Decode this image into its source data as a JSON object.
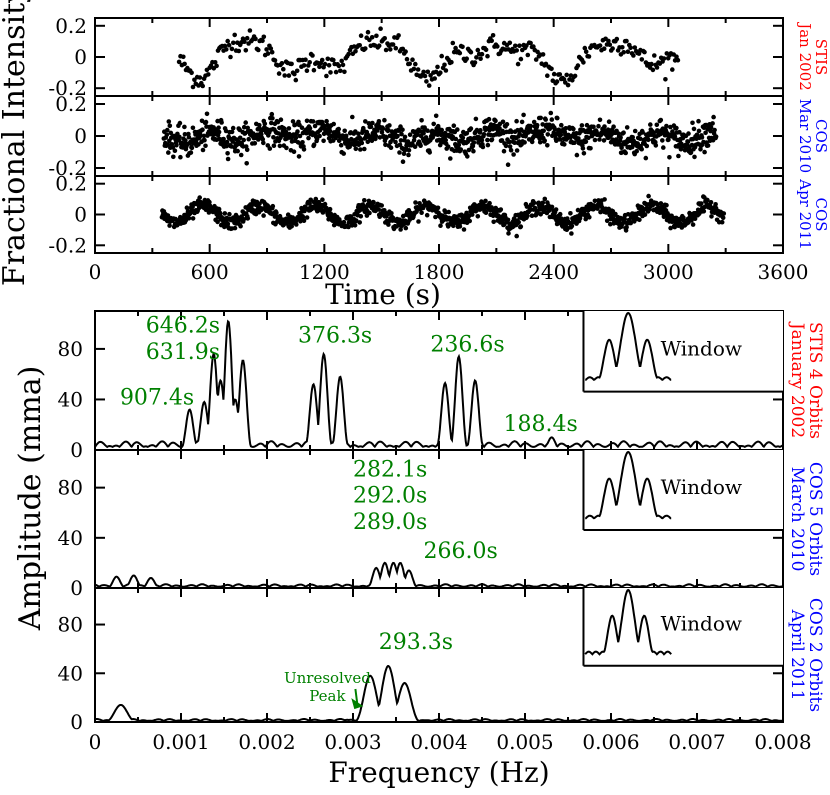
{
  "chart_data": [
    {
      "type": "scatter",
      "xlabel": "Time (s)",
      "ylabel": "Fractional Intensity",
      "xlim": [
        0,
        3600
      ],
      "x_ticks": [
        0,
        600,
        1200,
        1800,
        2400,
        3000,
        3600
      ],
      "panels": [
        {
          "id": "stis-2002",
          "label_lines": [
            "STIS",
            "Jan 2002"
          ],
          "label_color": "#ff0000",
          "ylim": [
            -0.25,
            0.25
          ],
          "y_ticks": [
            -0.2,
            0,
            0.2
          ],
          "x_range": [
            440,
            3050
          ],
          "amplitude": 0.09,
          "noise": 0.035,
          "periods": [
            646.2,
            376.3,
            236.6
          ],
          "n_points": 360
        },
        {
          "id": "cos-2010",
          "label_lines": [
            "COS",
            "Mar 2010"
          ],
          "label_color": "#0000ff",
          "ylim": [
            -0.25,
            0.25
          ],
          "y_ticks": [
            -0.2,
            0,
            0.2
          ],
          "x_range": [
            360,
            3250
          ],
          "amplitude": 0.03,
          "noise": 0.045,
          "periods": [
            292.0,
            1200
          ],
          "n_points": 1100
        },
        {
          "id": "cos-2011",
          "label_lines": [
            "COS",
            "Apr 2011"
          ],
          "label_color": "#0000ff",
          "ylim": [
            -0.25,
            0.25
          ],
          "y_ticks": [
            -0.2,
            0,
            0.2
          ],
          "x_range": [
            350,
            3290
          ],
          "amplitude": 0.055,
          "noise": 0.025,
          "periods": [
            293.3
          ],
          "n_points": 1100
        }
      ]
    },
    {
      "type": "line",
      "xlabel": "Frequency (Hz)",
      "ylabel": "Amplitude (mma)",
      "xlim": [
        0,
        0.008
      ],
      "x_ticks": [
        0,
        0.001,
        0.002,
        0.003,
        0.004,
        0.005,
        0.006,
        0.007,
        0.008
      ],
      "panels": [
        {
          "id": "stis-4-orbits",
          "label_lines": [
            "STIS 4 Orbits",
            "January 2002"
          ],
          "label_color": "#ff0000",
          "ylim": [
            0,
            110
          ],
          "y_ticks": [
            0,
            40,
            80
          ],
          "noise_level": 7,
          "peaks": [
            {
              "f": 0.0011,
              "a": 32
            },
            {
              "f": 0.00127,
              "a": 38
            },
            {
              "f": 0.00138,
              "a": 76
            },
            {
              "f": 0.00146,
              "a": 55
            },
            {
              "f": 0.00155,
              "a": 102
            },
            {
              "f": 0.00163,
              "a": 40
            },
            {
              "f": 0.00172,
              "a": 71
            },
            {
              "f": 0.00254,
              "a": 52
            },
            {
              "f": 0.00266,
              "a": 76
            },
            {
              "f": 0.00285,
              "a": 58
            },
            {
              "f": 0.00407,
              "a": 53
            },
            {
              "f": 0.00423,
              "a": 74
            },
            {
              "f": 0.00442,
              "a": 55
            },
            {
              "f": 0.00531,
              "a": 10
            }
          ],
          "annotations": [
            {
              "text": "646.2s",
              "f": 0.00059,
              "a": 93
            },
            {
              "text": "631.9s",
              "f": 0.00059,
              "a": 72
            },
            {
              "text": "376.3s",
              "f": 0.00236,
              "a": 85
            },
            {
              "text": "236.6s",
              "f": 0.0039,
              "a": 78
            },
            {
              "text": "907.4s",
              "f": 0.00029,
              "a": 36
            },
            {
              "text": "188.4s",
              "f": 0.00475,
              "a": 15
            }
          ],
          "window_label": "Window"
        },
        {
          "id": "cos-5-orbits",
          "label_lines": [
            "COS 5 Orbits",
            "March 2010"
          ],
          "label_color": "#0000ff",
          "ylim": [
            0,
            110
          ],
          "y_ticks": [
            0,
            40,
            80
          ],
          "noise_level": 3,
          "peaks": [
            {
              "f": 0.00025,
              "a": 9
            },
            {
              "f": 0.00045,
              "a": 10
            },
            {
              "f": 0.00065,
              "a": 8
            },
            {
              "f": 0.00327,
              "a": 16
            },
            {
              "f": 0.00337,
              "a": 20
            },
            {
              "f": 0.00347,
              "a": 20
            },
            {
              "f": 0.00355,
              "a": 20
            },
            {
              "f": 0.00365,
              "a": 14
            }
          ],
          "annotations": [
            {
              "text": "282.1s",
              "f": 0.003,
              "a": 89
            },
            {
              "text": "292.0s",
              "f": 0.003,
              "a": 68
            },
            {
              "text": "289.0s",
              "f": 0.003,
              "a": 47
            },
            {
              "text": "266.0s",
              "f": 0.00382,
              "a": 24
            }
          ],
          "window_label": "Window"
        },
        {
          "id": "cos-2-orbits",
          "label_lines": [
            "COS 2 Orbits",
            "April 2011"
          ],
          "label_color": "#0000ff",
          "ylim": [
            0,
            110
          ],
          "y_ticks": [
            0,
            40,
            80
          ],
          "noise_level": 2.5,
          "peaks": [
            {
              "f": 0.0003,
              "a": 14
            },
            {
              "f": 0.0032,
              "a": 38
            },
            {
              "f": 0.00341,
              "a": 46
            },
            {
              "f": 0.0036,
              "a": 32
            }
          ],
          "annotations": [
            {
              "text": "293.3s",
              "f": 0.0033,
              "a": 60
            }
          ],
          "arrow_note": {
            "lines": [
              "Unresolved",
              "Peak"
            ],
            "f": 0.0024,
            "a": 32,
            "target_f": 0.00312,
            "target_a": 13
          },
          "window_label": "Window"
        }
      ]
    }
  ],
  "colors": {
    "annotation": "#008000",
    "stis": "#ff0000",
    "cos": "#0000ff",
    "axis": "#000000"
  }
}
